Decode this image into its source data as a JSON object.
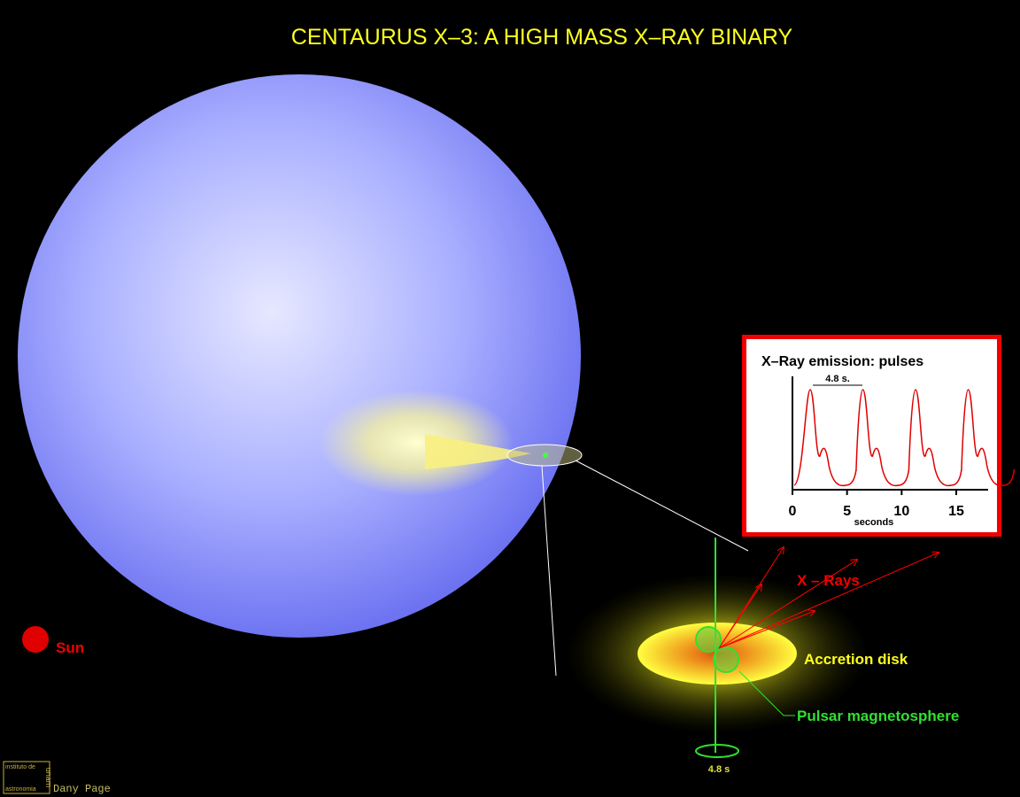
{
  "title": "CENTAURUS  X–3:   A HIGH MASS X–RAY BINARY",
  "labels": {
    "sun": "Sun",
    "x_rays": "X – Rays",
    "accretion_disk": "Accretion disk",
    "pulsar_magnetosphere": "Pulsar magnetosphere",
    "rotation_period": "4.8 s"
  },
  "inset": {
    "title": "X–Ray emission:  pulses",
    "period_label": "4.8 s.",
    "x_label": "seconds",
    "xlim": [
      0,
      18
    ],
    "xticks": [
      0,
      5,
      10,
      15
    ]
  },
  "credit": {
    "author": "Dany Page",
    "institute": [
      "instituto de",
      "astronomia",
      "unam"
    ]
  }
}
